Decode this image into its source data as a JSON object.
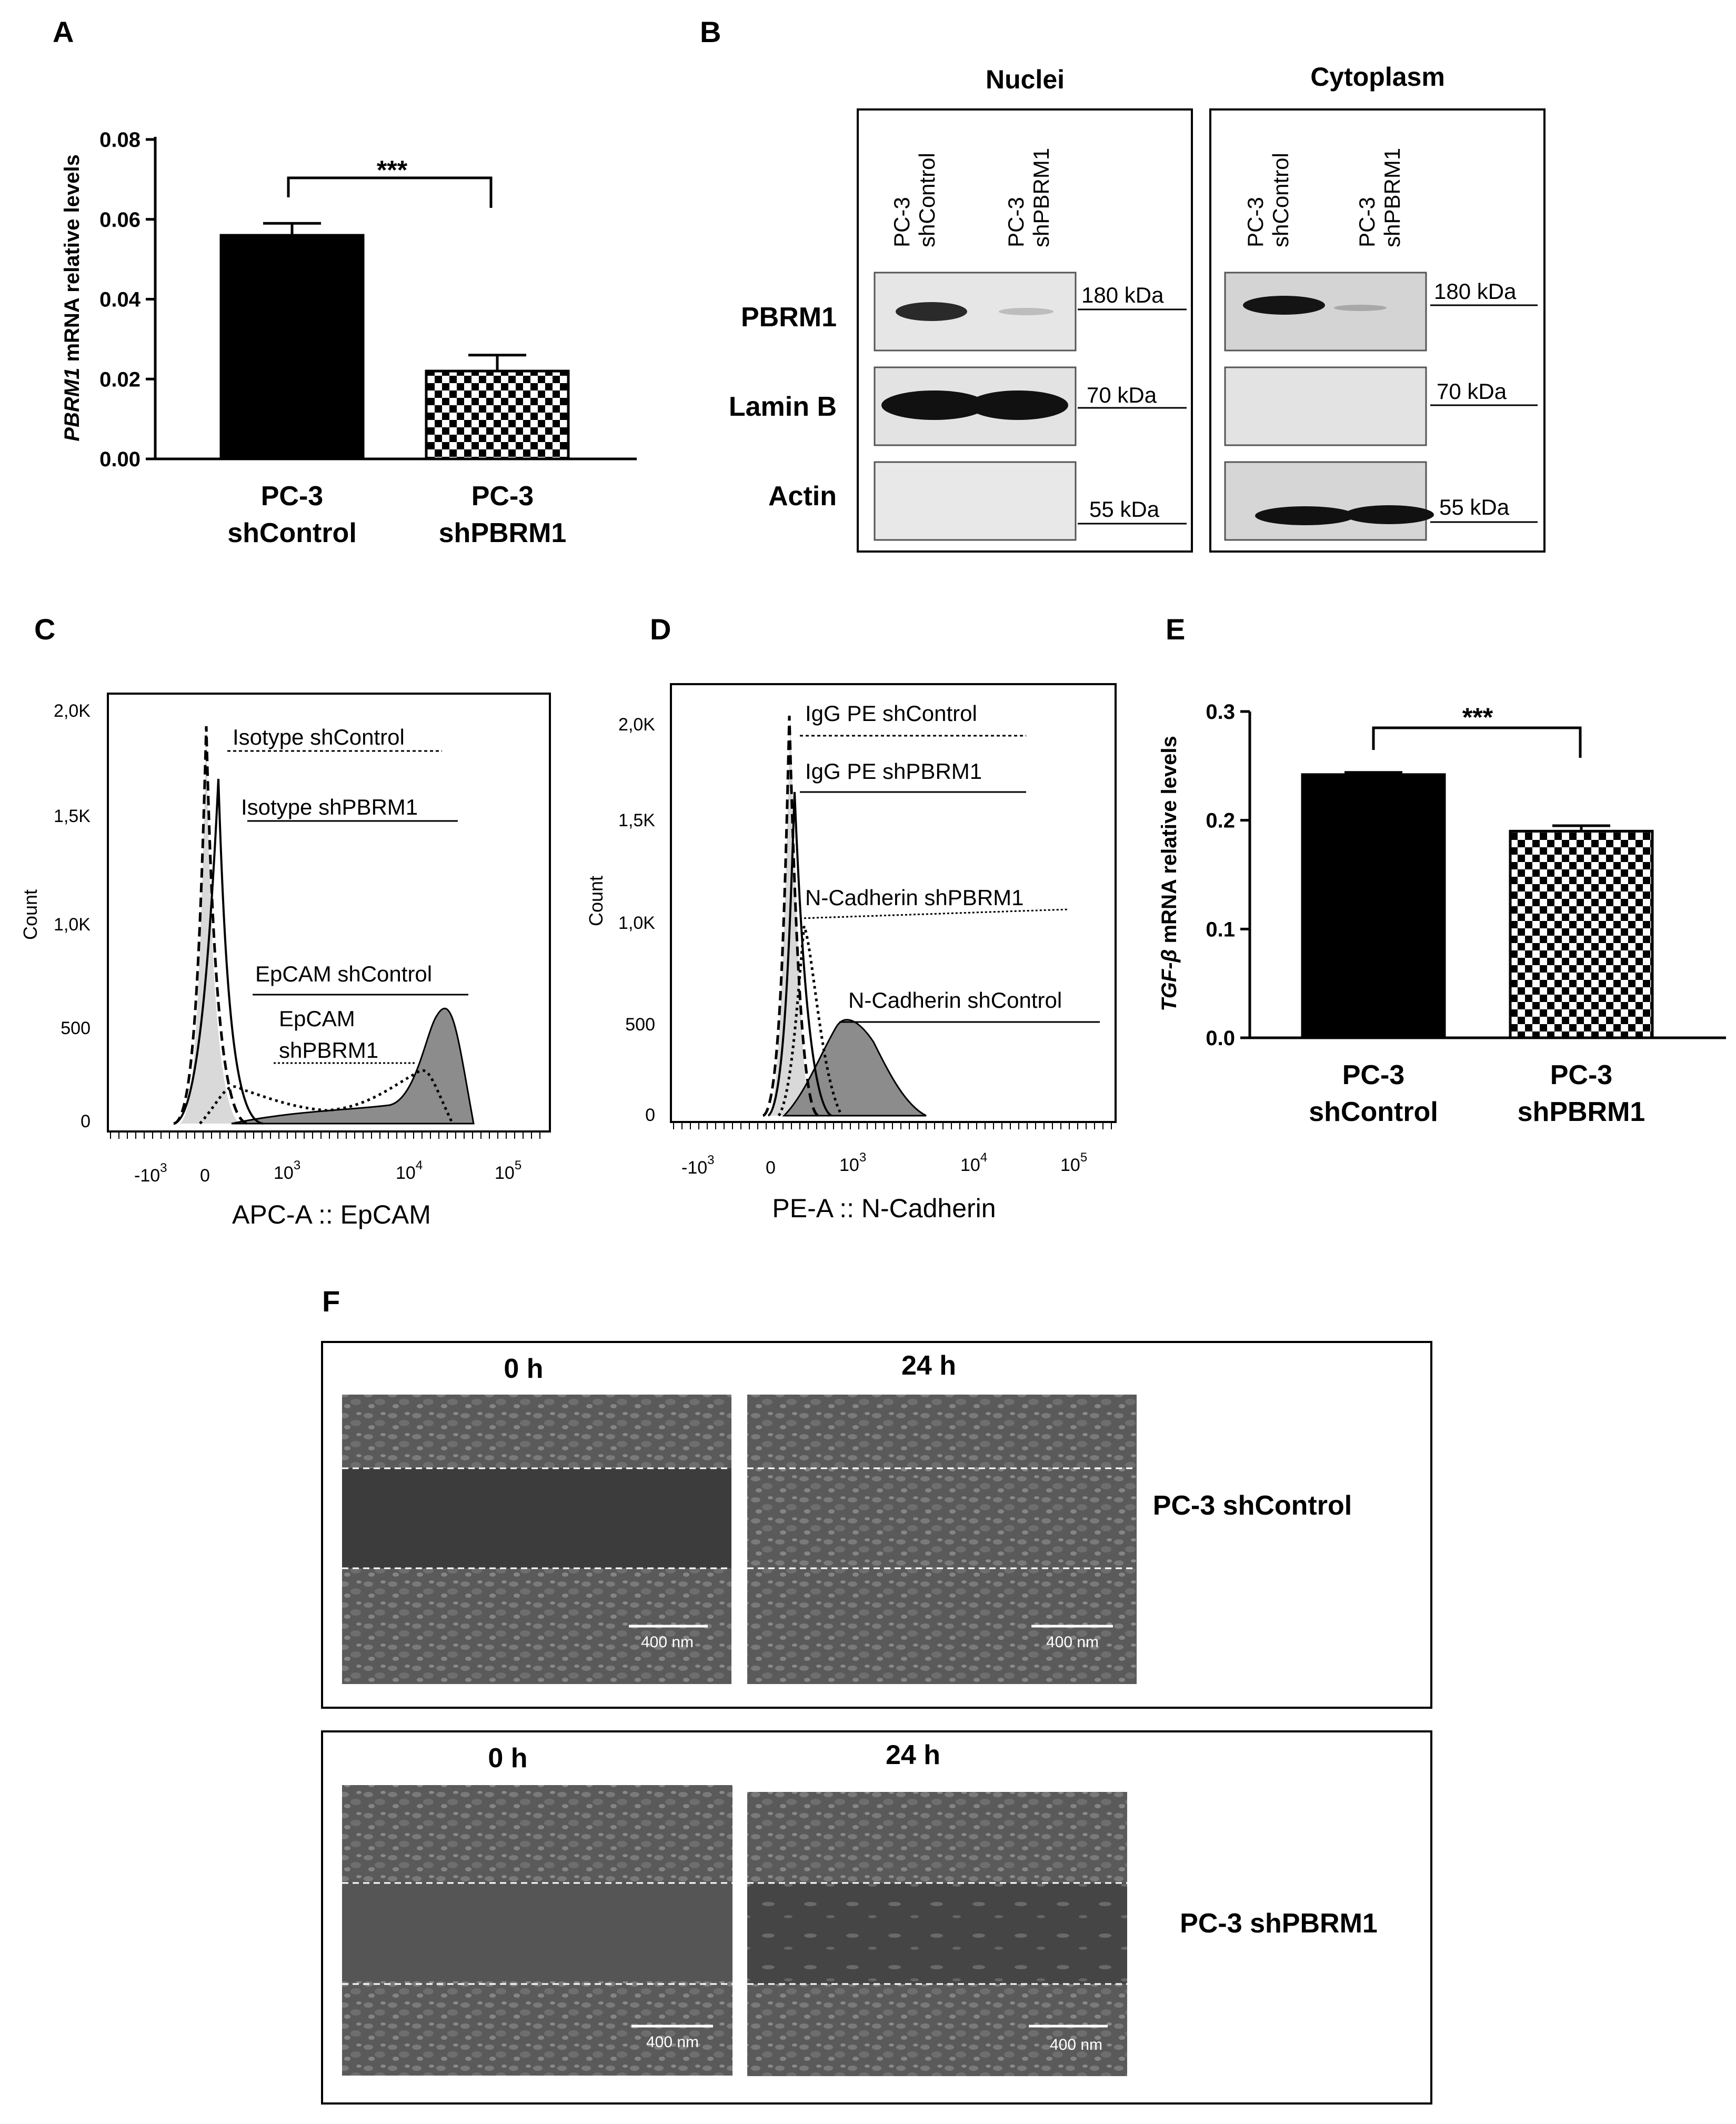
{
  "panels": {
    "A": {
      "letter": "A",
      "ylabel_italic": "PBRM1",
      "ylabel_rest": " mRNA relative levels",
      "significance": "***",
      "yticks": [
        "0.00",
        "0.02",
        "0.04",
        "0.06",
        "0.08"
      ],
      "cat_labels": [
        [
          "PC-3",
          "shControl"
        ],
        [
          "PC-3",
          "shPBRM1"
        ]
      ]
    },
    "B": {
      "letter": "B",
      "groups": [
        {
          "title": "Nuclei",
          "lanes": [
            [
              "PC-3",
              "shControl"
            ],
            [
              "PC-3",
              "shPBRM1"
            ]
          ]
        },
        {
          "title": "Cytoplasm",
          "lanes": [
            [
              "PC-3",
              "shControl"
            ],
            [
              "PC-3",
              "shPBRM1"
            ]
          ]
        }
      ],
      "rows": [
        "PBRM1",
        "Lamin B",
        "Actin"
      ],
      "markers": [
        "180 kDa",
        "70 kDa",
        "55 kDa"
      ]
    },
    "C": {
      "letter": "C",
      "ylabel": "Count",
      "xlabel": "APC-A :: EpCAM",
      "yticks": [
        "0",
        "500",
        "1,0K",
        "1,5K",
        "2,0K"
      ],
      "xticks": [
        {
          "base": "-10",
          "exp": "3"
        },
        {
          "base": "0",
          "exp": ""
        },
        {
          "base": "10",
          "exp": "3"
        },
        {
          "base": "10",
          "exp": "4"
        },
        {
          "base": "10",
          "exp": "5"
        }
      ],
      "legend": [
        "Isotype shControl",
        "Isotype shPBRM1",
        "EpCAM shControl",
        "EpCAM",
        "shPBRM1"
      ]
    },
    "D": {
      "letter": "D",
      "ylabel": "Count",
      "xlabel": "PE-A :: N-Cadherin",
      "yticks": [
        "0",
        "500",
        "1,0K",
        "1,5K",
        "2,0K"
      ],
      "xticks": [
        {
          "base": "-10",
          "exp": "3"
        },
        {
          "base": "0",
          "exp": ""
        },
        {
          "base": "10",
          "exp": "3"
        },
        {
          "base": "10",
          "exp": "4"
        },
        {
          "base": "10",
          "exp": "5"
        }
      ],
      "legend": [
        "IgG PE shControl",
        "IgG PE shPBRM1",
        "N-Cadherin  shPBRM1",
        "N-Cadherin  shControl"
      ]
    },
    "E": {
      "letter": "E",
      "ylabel_italic": "TGF-β",
      "ylabel_rest": " mRNA relative levels",
      "significance": "***",
      "yticks": [
        "0.0",
        "0.1",
        "0.2",
        "0.3"
      ],
      "cat_labels": [
        [
          "PC-3",
          "shControl"
        ],
        [
          "PC-3",
          "shPBRM1"
        ]
      ]
    },
    "F": {
      "letter": "F",
      "rows": [
        {
          "label": "PC-3 shControl",
          "times": [
            "0 h",
            "24 h"
          ],
          "scale": "400 nm"
        },
        {
          "label": "PC-3 shPBRM1",
          "times": [
            "0 h",
            "24 h"
          ],
          "scale": "400 nm"
        }
      ]
    }
  },
  "chart_data": [
    {
      "type": "bar",
      "panel": "A",
      "categories": [
        "PC-3 shControl",
        "PC-3 shPBRM1"
      ],
      "values": [
        0.056,
        0.022
      ],
      "errors": [
        0.003,
        0.004
      ],
      "ylim": [
        0,
        0.08
      ],
      "ylabel": "PBRM1 mRNA relative levels",
      "fills": [
        "#000000",
        "checker"
      ]
    },
    {
      "type": "bar",
      "panel": "E",
      "categories": [
        "PC-3 shControl",
        "PC-3 shPBRM1"
      ],
      "values": [
        0.242,
        0.19
      ],
      "errors": [
        0.002,
        0.005
      ],
      "ylim": [
        0,
        0.3
      ],
      "ylabel": "TGF-β mRNA relative levels",
      "fills": [
        "#000000",
        "checker"
      ]
    }
  ],
  "colors": {
    "bar": "#000000",
    "fill_light": "#d9d9d9",
    "fill_dark": "#8c8c8c",
    "micro_bg": "#4a4a4a"
  }
}
